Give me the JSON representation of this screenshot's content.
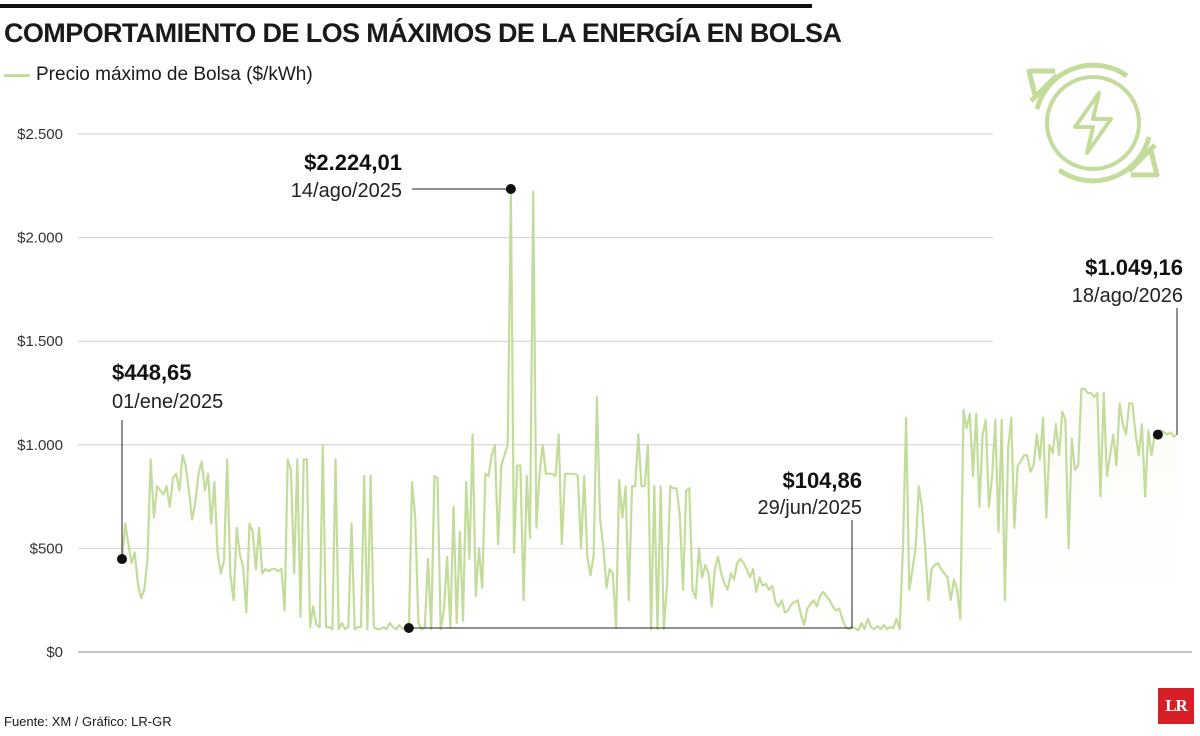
{
  "title": "COMPORTAMIENTO DE LOS MÁXIMOS DE LA ENERGÍA EN BOLSA",
  "footer": "Fuente: XM / Gráfico: LR-GR",
  "logo_text": "LR",
  "icon": "energy-cycle-icon",
  "colors": {
    "series": "#c4dc9b",
    "fill": "#f3f8e8",
    "icon": "#c4dc9b",
    "logo": "#d61f26"
  },
  "chart_data": {
    "type": "line",
    "title": "COMPORTAMIENTO DE LOS MÁXIMOS DE LA ENERGÍA EN BOLSA",
    "xlabel": "",
    "ylabel": "",
    "ylim": [
      0,
      2500
    ],
    "yticks": [
      0,
      500,
      1000,
      1500,
      2000,
      2500
    ],
    "ytick_labels": [
      "$0",
      "$500",
      "$1.000",
      "$1.500",
      "$2.000",
      "$2.500"
    ],
    "grid": true,
    "legend_position": "top-left",
    "series": [
      {
        "name": "Precio máximo de Bolsa ($/kWh)",
        "values": [
          449,
          620,
          520,
          430,
          480,
          330,
          260,
          300,
          450,
          930,
          650,
          800,
          780,
          760,
          800,
          700,
          840,
          860,
          780,
          950,
          900,
          780,
          640,
          720,
          860,
          920,
          780,
          860,
          620,
          820,
          480,
          380,
          440,
          930,
          370,
          250,
          600,
          470,
          410,
          190,
          620,
          580,
          400,
          600,
          380,
          400,
          390,
          400,
          400,
          390,
          400,
          200,
          930,
          880,
          380,
          930,
          170,
          930,
          930,
          120,
          220,
          130,
          120,
          1000,
          120,
          120,
          110,
          930,
          110,
          140,
          110,
          120,
          620,
          110,
          120,
          120,
          850,
          110,
          850,
          120,
          110,
          110,
          120,
          110,
          140,
          120,
          110,
          130,
          110,
          120,
          105,
          820,
          650,
          140,
          110,
          120,
          450,
          110,
          850,
          840,
          110,
          200,
          460,
          120,
          700,
          140,
          580,
          150,
          820,
          450,
          1050,
          270,
          500,
          310,
          860,
          850,
          950,
          1000,
          520,
          900,
          950,
          1000,
          2224,
          480,
          900,
          900,
          250,
          850,
          550,
          2220,
          600,
          860,
          1000,
          860,
          860,
          860,
          850,
          1050,
          520,
          860,
          860,
          860,
          860,
          850,
          500,
          850,
          460,
          370,
          470,
          1230,
          640,
          510,
          310,
          400,
          380,
          120,
          830,
          650,
          800,
          250,
          800,
          800,
          1050,
          800,
          800,
          1000,
          110,
          800,
          110,
          800,
          110,
          320,
          800,
          790,
          790,
          660,
          300,
          780,
          790,
          300,
          260,
          500,
          360,
          420,
          380,
          220,
          400,
          460,
          380,
          330,
          300,
          380,
          350,
          430,
          450,
          430,
          400,
          360,
          400,
          290,
          360,
          320,
          330,
          300,
          320,
          240,
          220,
          250,
          190,
          200,
          230,
          240,
          250,
          180,
          130,
          210,
          230,
          250,
          220,
          270,
          290,
          270,
          250,
          220,
          200,
          210,
          160,
          120,
          110,
          120,
          115,
          105,
          140,
          110,
          160,
          120,
          110,
          125,
          110,
          130,
          110,
          120,
          115,
          160,
          110,
          500,
          1130,
          300,
          400,
          500,
          800,
          700,
          500,
          250,
          400,
          420,
          430,
          400,
          380,
          360,
          250,
          350,
          300,
          160,
          1170,
          1080,
          1150,
          850,
          1150,
          700,
          1050,
          1120,
          700,
          850,
          1120,
          580,
          1120,
          250,
          980,
          1130,
          600,
          900,
          920,
          950,
          950,
          870,
          900,
          1050,
          930,
          1130,
          650,
          1000,
          960,
          1100,
          950,
          1160,
          1120,
          500,
          1030,
          880,
          900,
          1270,
          1270,
          1250,
          1250,
          1230,
          1250,
          750,
          1250,
          850,
          950,
          1050,
          900,
          1200,
          1100,
          1050,
          1200,
          1200,
          1050,
          950,
          1100,
          750,
          1070,
          950,
          1050,
          1050,
          1070,
          1060,
          1050,
          1060,
          1040,
          1049
        ],
        "color": "#c4dc9b"
      }
    ],
    "annotations": [
      {
        "value_label": "$448,65",
        "date_label": "01/ene/2025",
        "value": 448.65,
        "point_index": 0
      },
      {
        "value_label": "$2.224,01",
        "date_label": "14/ago/2025",
        "value": 2224.01,
        "point_index": 122
      },
      {
        "value_label": "$104,86",
        "date_label": "29/jun/2025",
        "value": 104.86,
        "point_index": 90
      },
      {
        "value_label": "$1.049,16",
        "date_label": "18/ago/2026",
        "value": 1049.16,
        "point_index": 325
      }
    ]
  }
}
